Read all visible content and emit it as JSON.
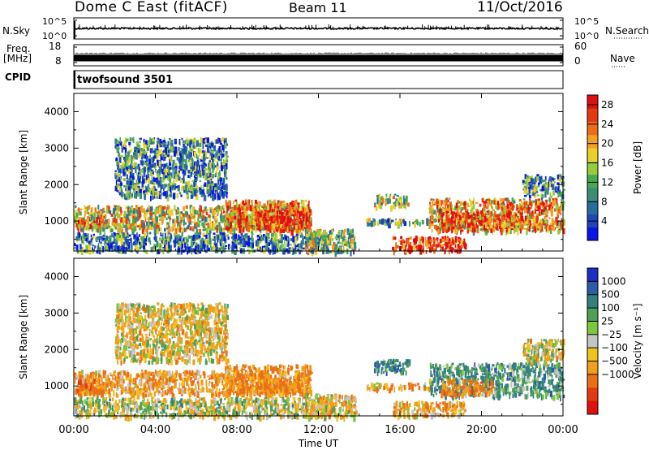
{
  "header": {
    "station": "Dome C East (fitACF)",
    "beam": "Beam 11",
    "date": "11/Oct/2016"
  },
  "panels": {
    "nsky": {
      "label": "N.Sky",
      "top_tick": "10^5",
      "bottom_tick": "10^0",
      "right_top_tick": "10^5",
      "right_bottom_tick": "10^0",
      "right_label": "N.Search"
    },
    "freq": {
      "label_line1": "Freq.",
      "label_line2": "[MHz]",
      "top_tick": "18",
      "bottom_tick": "8",
      "right_top_tick": "60",
      "right_bottom_tick": "0",
      "right_label": "Nave"
    },
    "cpid": {
      "label": "CPID",
      "program": "twofsound 3501"
    }
  },
  "chart_data": [
    {
      "type": "heatmap",
      "title": "Power",
      "ylabel": "Slant Range [km]",
      "xlabel": "Time UT",
      "x_ticks": [
        "00:00",
        "04:00",
        "08:00",
        "12:00",
        "16:00",
        "20:00",
        "00:00"
      ],
      "x_range_hours": [
        0,
        24
      ],
      "y_ticks": [
        1000,
        2000,
        3000,
        4000
      ],
      "ylim": [
        180,
        4500
      ],
      "colorbar": {
        "label": "Power [dB]",
        "ticks": [
          "4",
          "8",
          "12",
          "16",
          "20",
          "24",
          "28"
        ],
        "range": [
          0,
          30
        ],
        "colors": [
          "#0a14e6",
          "#1f45b8",
          "#2a6b9e",
          "#3c8c78",
          "#4aa84f",
          "#95cc3b",
          "#e8d12a",
          "#f2a024",
          "#ec6c1a",
          "#e43a12",
          "#e01010"
        ]
      },
      "regions": [
        {
          "t0": 0.0,
          "t1": 11.6,
          "r0": 780,
          "r1": 1450,
          "v": 17
        },
        {
          "t0": 7.4,
          "t1": 11.6,
          "r0": 800,
          "r1": 1600,
          "v": 23
        },
        {
          "t0": 9.0,
          "t1": 11.4,
          "r0": 750,
          "r1": 1300,
          "v": 27
        },
        {
          "t0": 0.1,
          "t1": 1.5,
          "r0": 880,
          "r1": 1200,
          "v": 24
        },
        {
          "t0": 2.0,
          "t1": 7.5,
          "r0": 1700,
          "r1": 3300,
          "v": 9
        },
        {
          "t0": 0.0,
          "t1": 12.5,
          "r0": 200,
          "r1": 700,
          "v": 8
        },
        {
          "t0": 11.3,
          "t1": 13.8,
          "r0": 180,
          "r1": 800,
          "v": 14
        },
        {
          "t0": 14.7,
          "t1": 16.4,
          "r0": 1400,
          "r1": 1750,
          "v": 15
        },
        {
          "t0": 14.3,
          "t1": 17.5,
          "r0": 950,
          "r1": 1100,
          "v": 12
        },
        {
          "t0": 15.6,
          "t1": 19.2,
          "r0": 200,
          "r1": 600,
          "v": 28
        },
        {
          "t0": 17.4,
          "t1": 24.0,
          "r0": 750,
          "r1": 1650,
          "v": 20
        },
        {
          "t0": 18.0,
          "t1": 22.0,
          "r0": 800,
          "r1": 1300,
          "v": 25
        },
        {
          "t0": 22.0,
          "t1": 24.0,
          "r0": 1700,
          "r1": 2300,
          "v": 9
        }
      ]
    },
    {
      "type": "heatmap",
      "title": "Velocity",
      "ylabel": "Slant Range [km]",
      "xlabel": "Time UT",
      "x_ticks": [
        "00:00",
        "04:00",
        "08:00",
        "12:00",
        "16:00",
        "20:00",
        "00:00"
      ],
      "x_range_hours": [
        0,
        24
      ],
      "y_ticks": [
        1000,
        2000,
        3000,
        4000
      ],
      "ylim": [
        180,
        4500
      ],
      "colorbar": {
        "label": "Velocity [m s⁻¹]",
        "ticks": [
          "1000",
          "500",
          "100",
          "25",
          "−25",
          "−100",
          "−500",
          "−1000"
        ],
        "colors": [
          "#1c2fc4",
          "#2c5ca6",
          "#33807e",
          "#4e9f58",
          "#7cc640",
          "#c4c4c4",
          "#f1c220",
          "#f0a018",
          "#ea7018",
          "#e33a12",
          "#e01010"
        ]
      },
      "regions": [
        {
          "t0": 0.0,
          "t1": 11.6,
          "r0": 780,
          "r1": 1450,
          "v": -150
        },
        {
          "t0": 7.4,
          "t1": 11.6,
          "r0": 800,
          "r1": 1600,
          "v": -200
        },
        {
          "t0": 0.1,
          "t1": 1.5,
          "r0": 880,
          "r1": 1200,
          "v": -300
        },
        {
          "t0": 2.0,
          "t1": 7.5,
          "r0": 1700,
          "r1": 3300,
          "v": -60
        },
        {
          "t0": 0.0,
          "t1": 12.5,
          "r0": 200,
          "r1": 700,
          "v": 0
        },
        {
          "t0": 11.3,
          "t1": 13.8,
          "r0": 180,
          "r1": 800,
          "v": -80
        },
        {
          "t0": 14.7,
          "t1": 16.4,
          "r0": 1400,
          "r1": 1750,
          "v": 200
        },
        {
          "t0": 14.3,
          "t1": 17.5,
          "r0": 950,
          "r1": 1100,
          "v": -100
        },
        {
          "t0": 15.6,
          "t1": 19.2,
          "r0": 200,
          "r1": 600,
          "v": -120
        },
        {
          "t0": 17.4,
          "t1": 24.0,
          "r0": 750,
          "r1": 1650,
          "v": 150
        },
        {
          "t0": 18.0,
          "t1": 20.5,
          "r0": 800,
          "r1": 1200,
          "v": -250
        },
        {
          "t0": 22.0,
          "t1": 24.0,
          "r0": 1700,
          "r1": 2300,
          "v": -30
        }
      ]
    }
  ]
}
